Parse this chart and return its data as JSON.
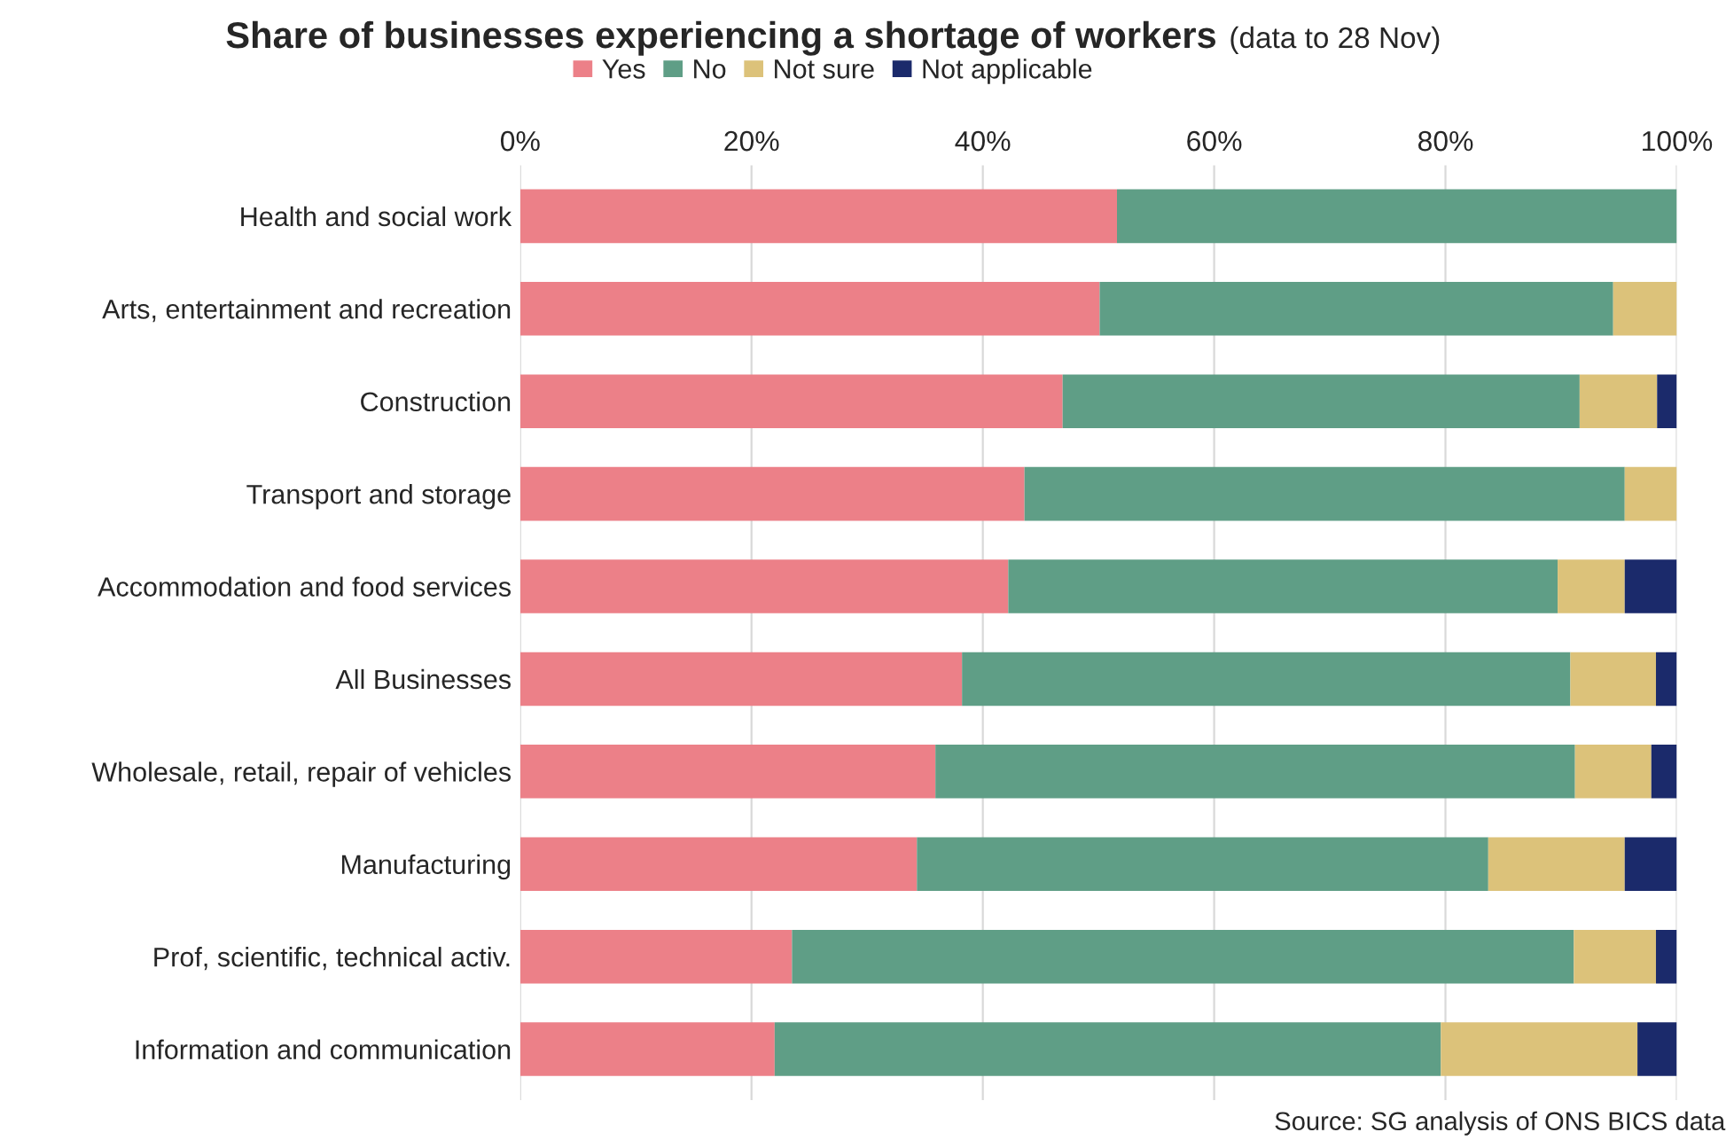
{
  "chart_data": {
    "type": "bar",
    "orientation": "horizontal",
    "stacked": true,
    "title": "Share of businesses experiencing a shortage of workers",
    "subtitle": "(data to 28 Nov)",
    "categories": [
      "Health and social work",
      "Arts, entertainment and recreation",
      "Construction",
      "Transport and storage",
      "Accommodation and food services",
      "All Businesses",
      "Wholesale, retail, repair of vehicles",
      "Manufacturing",
      "Prof, scientific, technical activ.",
      "Information and communication"
    ],
    "series": [
      {
        "name": "Yes",
        "color": "#ec8088",
        "values": [
          51.6,
          50.1,
          46.9,
          43.6,
          42.2,
          38.2,
          35.9,
          34.3,
          23.5,
          22.0
        ]
      },
      {
        "name": "No",
        "color": "#5f9e86",
        "values": [
          48.4,
          44.4,
          44.7,
          51.9,
          47.5,
          52.6,
          55.3,
          49.4,
          67.6,
          57.6
        ]
      },
      {
        "name": "Not sure",
        "color": "#dcc27a",
        "values": [
          null,
          5.5,
          6.7,
          4.5,
          5.8,
          7.4,
          6.6,
          11.8,
          7.1,
          17.0
        ]
      },
      {
        "name": "Not applicable",
        "color": "#1b2a6b",
        "values": [
          null,
          null,
          1.7,
          null,
          4.5,
          1.8,
          2.2,
          4.5,
          1.8,
          3.4
        ]
      }
    ],
    "xlim": [
      0,
      100
    ],
    "xticks": [
      {
        "value": 0,
        "label": "0%"
      },
      {
        "value": 20,
        "label": "20%"
      },
      {
        "value": 40,
        "label": "40%"
      },
      {
        "value": 60,
        "label": "60%"
      },
      {
        "value": 80,
        "label": "80%"
      },
      {
        "value": 100,
        "label": "100%"
      }
    ],
    "grid": "x",
    "legend": "top",
    "annotations": [
      "Source: SG analysis of ONS BICS data"
    ]
  }
}
